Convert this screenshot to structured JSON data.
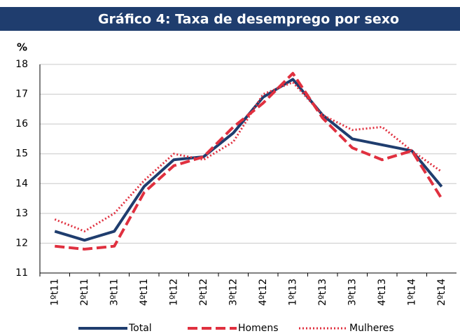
{
  "chart_data": {
    "type": "line",
    "title": "Gráfico 4: Taxa de desemprego por sexo",
    "y_label": "%",
    "categories": [
      "1ºt11",
      "2ºt11",
      "3ºt11",
      "4ºt11",
      "1ºt12",
      "2ºt12",
      "3ºt12",
      "4ºt12",
      "1ºt13",
      "2ºt13",
      "3ºt13",
      "4ºt13",
      "1ºt14",
      "2ºt14"
    ],
    "series": [
      {
        "name": "Total",
        "color": "#1f3d6e",
        "style": "solid",
        "values": [
          12.4,
          12.1,
          12.4,
          13.9,
          14.8,
          14.9,
          15.7,
          16.9,
          17.5,
          16.3,
          15.5,
          15.3,
          15.1,
          13.9
        ]
      },
      {
        "name": "Homens",
        "color": "#e0303f",
        "style": "dashed",
        "values": [
          11.9,
          11.8,
          11.9,
          13.7,
          14.6,
          14.9,
          15.9,
          16.7,
          17.7,
          16.2,
          15.2,
          14.8,
          15.1,
          13.5
        ]
      },
      {
        "name": "Mulheres",
        "color": "#e0303f",
        "style": "dotted",
        "values": [
          12.8,
          12.4,
          13.0,
          14.1,
          15.0,
          14.8,
          15.4,
          17.0,
          17.4,
          16.3,
          15.8,
          15.9,
          15.1,
          14.4
        ]
      }
    ],
    "ylim": [
      11,
      18
    ],
    "yticks": [
      11,
      12,
      13,
      14,
      15,
      16,
      17,
      18
    ],
    "grid": true
  }
}
